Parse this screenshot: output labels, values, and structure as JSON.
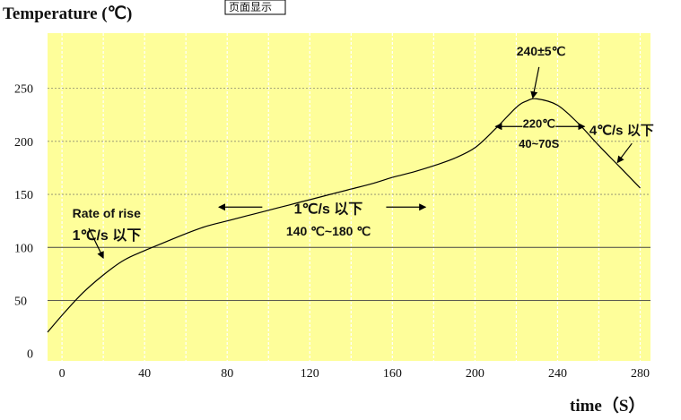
{
  "page_button": {
    "label": "页面显示"
  },
  "chart_data": {
    "type": "line",
    "title": "Temperature (℃)",
    "xlabel": "time（S）",
    "ylabel": "Temperature (℃)",
    "xlim": [
      -7,
      285
    ],
    "ylim": [
      -7,
      302
    ],
    "x_ticks": [
      0,
      40,
      80,
      120,
      160,
      200,
      240,
      280
    ],
    "y_ticks": [
      0,
      50,
      100,
      150,
      200,
      250
    ],
    "grid": true,
    "series": [
      {
        "x": [
          -7,
          0,
          10,
          20,
          30,
          40,
          50,
          60,
          70,
          80,
          90,
          100,
          110,
          120,
          130,
          140,
          150,
          160,
          170,
          180,
          190,
          200,
          210,
          220,
          225,
          230,
          240,
          250,
          260,
          270,
          280
        ],
        "y": [
          20,
          36,
          57,
          74,
          88,
          97,
          105,
          113,
          120,
          125,
          130,
          135,
          140,
          145,
          150,
          155,
          160,
          166,
          171,
          177,
          184,
          194,
          212,
          232,
          238,
          240,
          234,
          217,
          196,
          176,
          156
        ]
      }
    ],
    "annotations": [
      {
        "label": "Rate of rise",
        "x": 5,
        "y": 128
      },
      {
        "label": "1℃/s 以下",
        "x": 5,
        "y": 107
      },
      {
        "label": "1℃/s 以下",
        "x": 129,
        "y": 132
      },
      {
        "label": "140 ℃~180 ℃",
        "x": 129,
        "y": 111
      },
      {
        "label": "240±5℃",
        "x": 232,
        "y": 281
      },
      {
        "label": "220℃",
        "x": 231,
        "y": 213
      },
      {
        "label": "40~70S",
        "x": 231,
        "y": 194
      },
      {
        "label": "4℃/s 以下",
        "x": 271,
        "y": 206
      }
    ],
    "arrows": [
      {
        "from": [
          13,
          118
        ],
        "to": [
          20,
          90
        ]
      },
      {
        "from": [
          97,
          138
        ],
        "to": [
          76,
          138
        ]
      },
      {
        "from": [
          157,
          138
        ],
        "to": [
          176,
          138
        ]
      },
      {
        "from": [
          231,
          270
        ],
        "to": [
          228,
          241
        ]
      },
      {
        "from": [
          223,
          214
        ],
        "to": [
          210,
          214
        ]
      },
      {
        "from": [
          239,
          214
        ],
        "to": [
          253,
          214
        ]
      },
      {
        "from": [
          276,
          198
        ],
        "to": [
          269,
          180
        ]
      }
    ]
  }
}
